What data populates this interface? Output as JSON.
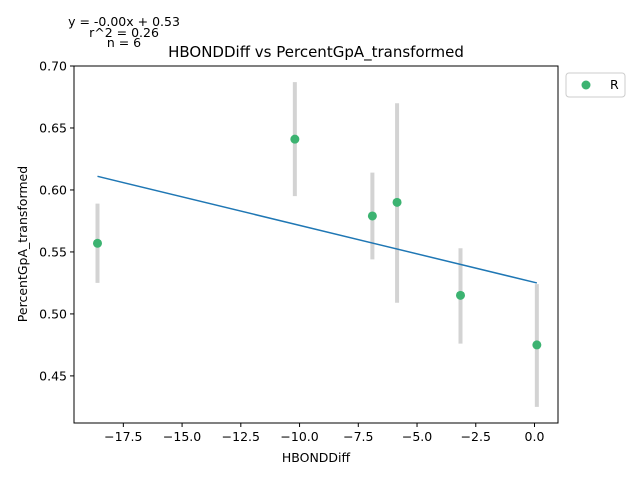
{
  "chart_data": {
    "type": "scatter",
    "title": "HBONDDiff vs PercentGpA_transformed",
    "xlabel": "HBONDDiff",
    "ylabel": "PercentGpA_transformed",
    "xlim": [
      -19.6,
      1.0
    ],
    "ylim": [
      0.412,
      0.7
    ],
    "xticks": [
      -17.5,
      -15.0,
      -12.5,
      -10.0,
      -7.5,
      -5.0,
      -2.5,
      0.0
    ],
    "xtick_labels": [
      "−17.5",
      "−15.0",
      "−12.5",
      "−10.0",
      "−7.5",
      "−5.0",
      "−2.5",
      "0.0"
    ],
    "yticks": [
      0.45,
      0.5,
      0.55,
      0.6,
      0.65,
      0.7
    ],
    "ytick_labels": [
      "0.45",
      "0.50",
      "0.55",
      "0.60",
      "0.65",
      "0.70"
    ],
    "grid": false,
    "legend_position": "outside-top-right",
    "series": [
      {
        "name": "R",
        "color": "#3cb371",
        "points": [
          {
            "x": -18.6,
            "y": 0.557,
            "err_lo": 0.525,
            "err_hi": 0.589
          },
          {
            "x": -10.2,
            "y": 0.641,
            "err_lo": 0.595,
            "err_hi": 0.687
          },
          {
            "x": -6.9,
            "y": 0.579,
            "err_lo": 0.544,
            "err_hi": 0.614
          },
          {
            "x": -5.85,
            "y": 0.59,
            "err_lo": 0.509,
            "err_hi": 0.67
          },
          {
            "x": -3.15,
            "y": 0.515,
            "err_lo": 0.476,
            "err_hi": 0.553
          },
          {
            "x": 0.1,
            "y": 0.475,
            "err_lo": 0.425,
            "err_hi": 0.524
          }
        ]
      }
    ],
    "error_bar_color": "#d3d3d3",
    "fit": {
      "color": "#1f77b4",
      "x_start": -18.6,
      "y_start": 0.611,
      "x_end": 0.1,
      "y_end": 0.525
    },
    "annotations": {
      "equation": "y = -0.00x + 0.53",
      "r2": "r^2 = 0.26",
      "n": "n = 6"
    }
  }
}
